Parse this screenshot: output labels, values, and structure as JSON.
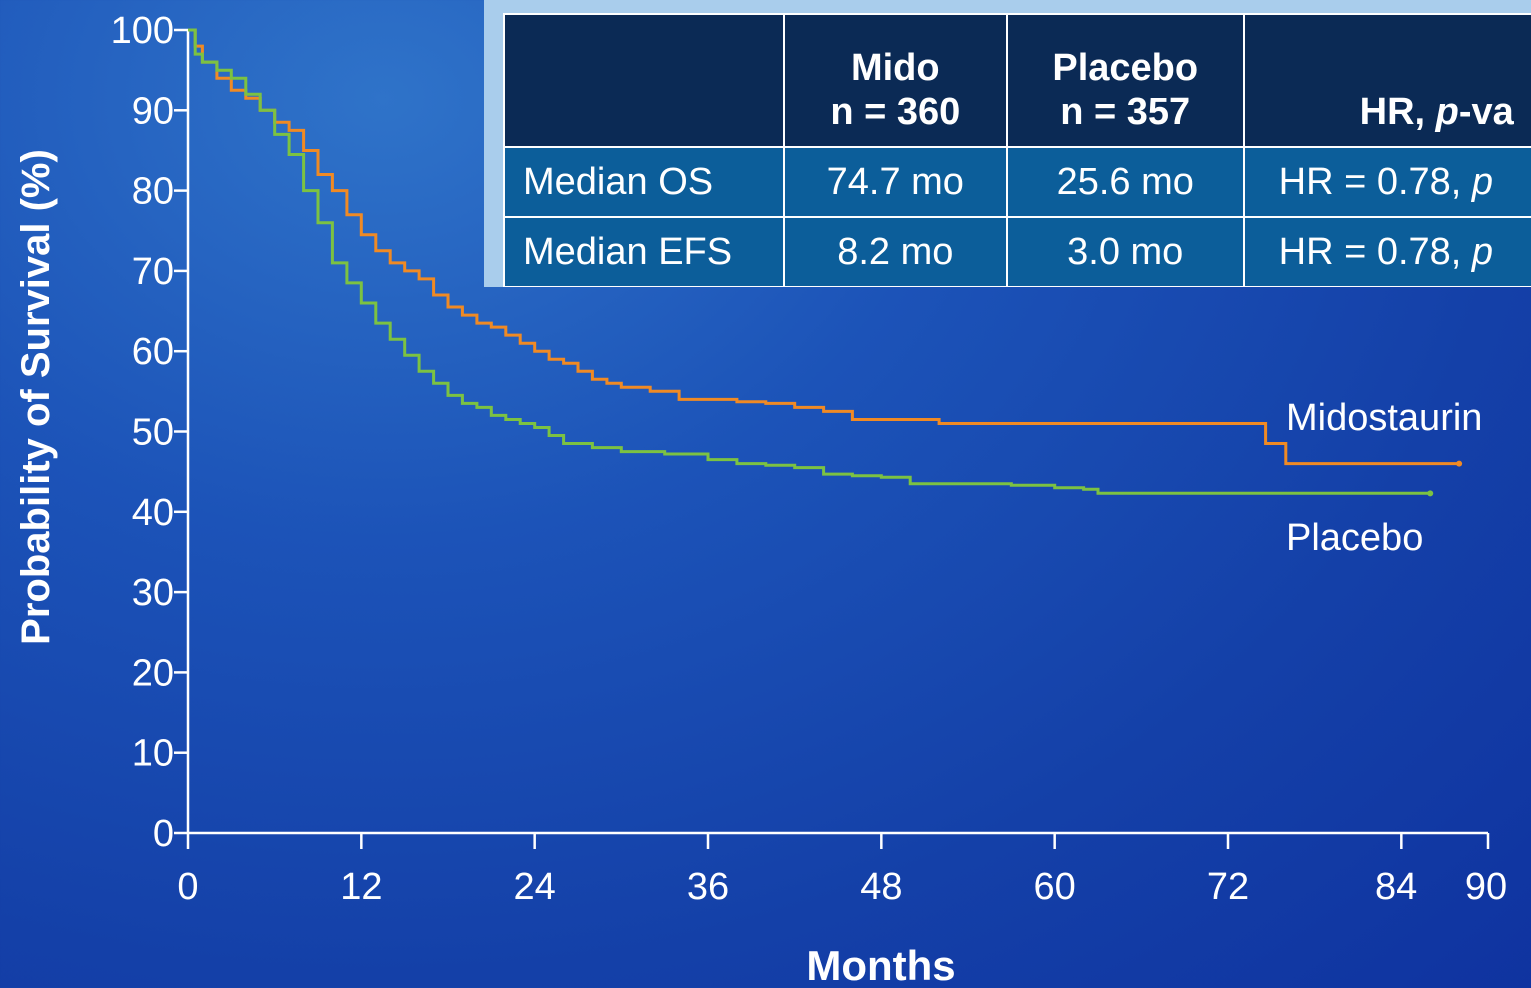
{
  "chart_data": {
    "type": "line",
    "xlabel": "Months",
    "ylabel": "Probability of Survival (%)",
    "xlim": [
      0,
      90
    ],
    "ylim": [
      0,
      100
    ],
    "xticks": [
      0,
      12,
      24,
      36,
      48,
      60,
      72,
      84,
      90
    ],
    "yticks": [
      0,
      10,
      20,
      30,
      40,
      50,
      60,
      70,
      80,
      90,
      100
    ],
    "grid": false,
    "series": [
      {
        "name": "Midostaurin",
        "color": "#f08a24",
        "points": [
          [
            0,
            100
          ],
          [
            0.5,
            98
          ],
          [
            1,
            96
          ],
          [
            2,
            94
          ],
          [
            3,
            92.5
          ],
          [
            4,
            91.5
          ],
          [
            5,
            90
          ],
          [
            6,
            88.5
          ],
          [
            7,
            87.5
          ],
          [
            8,
            85
          ],
          [
            9,
            82
          ],
          [
            10,
            80
          ],
          [
            11,
            77
          ],
          [
            12,
            74.5
          ],
          [
            13,
            72.5
          ],
          [
            14,
            71
          ],
          [
            15,
            70
          ],
          [
            16,
            69
          ],
          [
            17,
            67
          ],
          [
            18,
            65.5
          ],
          [
            19,
            64.5
          ],
          [
            20,
            63.5
          ],
          [
            21,
            63
          ],
          [
            22,
            62
          ],
          [
            23,
            61
          ],
          [
            24,
            60
          ],
          [
            25,
            59
          ],
          [
            26,
            58.5
          ],
          [
            27,
            57.5
          ],
          [
            28,
            56.5
          ],
          [
            29,
            56
          ],
          [
            30,
            55.5
          ],
          [
            32,
            55
          ],
          [
            34,
            54
          ],
          [
            36,
            54
          ],
          [
            38,
            53.7
          ],
          [
            40,
            53.5
          ],
          [
            42,
            53
          ],
          [
            44,
            52.5
          ],
          [
            46,
            51.5
          ],
          [
            48,
            51.5
          ],
          [
            52,
            51
          ],
          [
            56,
            51
          ],
          [
            60,
            51
          ],
          [
            64,
            51
          ],
          [
            68,
            51
          ],
          [
            72,
            51
          ],
          [
            74.5,
            51
          ],
          [
            74.6,
            48.5
          ],
          [
            75.5,
            48.5
          ],
          [
            76,
            46
          ],
          [
            80,
            46
          ],
          [
            84,
            46
          ],
          [
            88,
            46
          ]
        ]
      },
      {
        "name": "Placebo",
        "color": "#7cc242",
        "points": [
          [
            0,
            100
          ],
          [
            0.5,
            97
          ],
          [
            1,
            96
          ],
          [
            2,
            95
          ],
          [
            3,
            94
          ],
          [
            4,
            92
          ],
          [
            5,
            90
          ],
          [
            6,
            87
          ],
          [
            7,
            84.5
          ],
          [
            8,
            80
          ],
          [
            9,
            76
          ],
          [
            10,
            71
          ],
          [
            11,
            68.5
          ],
          [
            12,
            66
          ],
          [
            13,
            63.5
          ],
          [
            14,
            61.5
          ],
          [
            15,
            59.5
          ],
          [
            16,
            57.5
          ],
          [
            17,
            56
          ],
          [
            18,
            54.5
          ],
          [
            19,
            53.5
          ],
          [
            20,
            53
          ],
          [
            21,
            52
          ],
          [
            22,
            51.5
          ],
          [
            23,
            51
          ],
          [
            24,
            50.5
          ],
          [
            25,
            49.5
          ],
          [
            26,
            48.5
          ],
          [
            28,
            48
          ],
          [
            30,
            47.5
          ],
          [
            33,
            47.2
          ],
          [
            36,
            46.5
          ],
          [
            38,
            46
          ],
          [
            40,
            45.8
          ],
          [
            42,
            45.5
          ],
          [
            44,
            44.7
          ],
          [
            46,
            44.5
          ],
          [
            48,
            44.3
          ],
          [
            50,
            43.5
          ],
          [
            53,
            43.5
          ],
          [
            57,
            43.3
          ],
          [
            60,
            43
          ],
          [
            62,
            42.8
          ],
          [
            63,
            42.3
          ],
          [
            66,
            42.3
          ],
          [
            70,
            42.3
          ],
          [
            75,
            42.3
          ],
          [
            80,
            42.3
          ],
          [
            86,
            42.3
          ]
        ]
      }
    ]
  },
  "table": {
    "headers": [
      {
        "line1": "",
        "line2": ""
      },
      {
        "line1": "Mido",
        "line2": "n = 360"
      },
      {
        "line1": "Placebo",
        "line2": "n = 357"
      },
      {
        "line1": "",
        "line2_prefix": "HR, ",
        "line2_italic": "p",
        "line2_suffix": "-va"
      }
    ],
    "rows": [
      {
        "label": "Median OS",
        "mido": "74.7 mo",
        "placebo": "25.6 mo",
        "hr_text": "HR = 0.78, ",
        "hr_italic": "p"
      },
      {
        "label": "Median EFS",
        "mido": "8.2 mo",
        "placebo": "3.0 mo",
        "hr_text": "HR = 0.78, ",
        "hr_italic": "p"
      }
    ]
  }
}
